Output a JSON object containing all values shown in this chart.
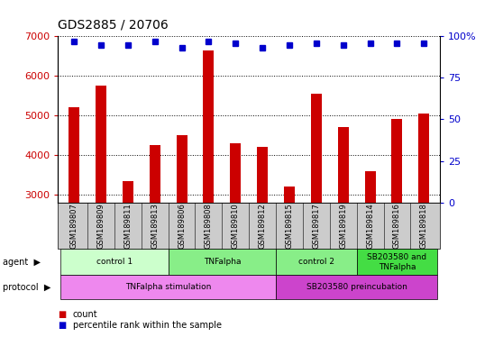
{
  "title": "GDS2885 / 20706",
  "samples": [
    "GSM189807",
    "GSM189809",
    "GSM189811",
    "GSM189813",
    "GSM189806",
    "GSM189808",
    "GSM189810",
    "GSM189812",
    "GSM189815",
    "GSM189817",
    "GSM189819",
    "GSM189814",
    "GSM189816",
    "GSM189818"
  ],
  "counts": [
    5200,
    5750,
    3350,
    4250,
    4500,
    6650,
    4300,
    4200,
    3200,
    5550,
    4700,
    3600,
    4900,
    5050
  ],
  "percentile_ranks": [
    97,
    95,
    95,
    97,
    93,
    97,
    96,
    93,
    95,
    96,
    95,
    96,
    96,
    96
  ],
  "ylim_left": [
    2800,
    7000
  ],
  "ylim_right": [
    0,
    100
  ],
  "yticks_left": [
    3000,
    4000,
    5000,
    6000,
    7000
  ],
  "yticks_right": [
    0,
    25,
    50,
    75,
    100
  ],
  "bar_color": "#cc0000",
  "dot_color": "#0000cc",
  "agent_groups": [
    {
      "label": "control 1",
      "start": 0,
      "end": 3,
      "color": "#ccffcc"
    },
    {
      "label": "TNFalpha",
      "start": 4,
      "end": 7,
      "color": "#88ee88"
    },
    {
      "label": "control 2",
      "start": 8,
      "end": 10,
      "color": "#88ee88"
    },
    {
      "label": "SB203580 and\nTNFalpha",
      "start": 11,
      "end": 13,
      "color": "#44dd44"
    }
  ],
  "protocol_groups": [
    {
      "label": "TNFalpha stimulation",
      "start": 0,
      "end": 7,
      "color": "#ee88ee"
    },
    {
      "label": "SB203580 preincubation",
      "start": 8,
      "end": 13,
      "color": "#cc44cc"
    }
  ],
  "agent_label": "agent",
  "protocol_label": "protocol",
  "legend_count": "count",
  "legend_percentile": "percentile rank within the sample",
  "tick_bg_color": "#cccccc",
  "bar_width": 0.4
}
